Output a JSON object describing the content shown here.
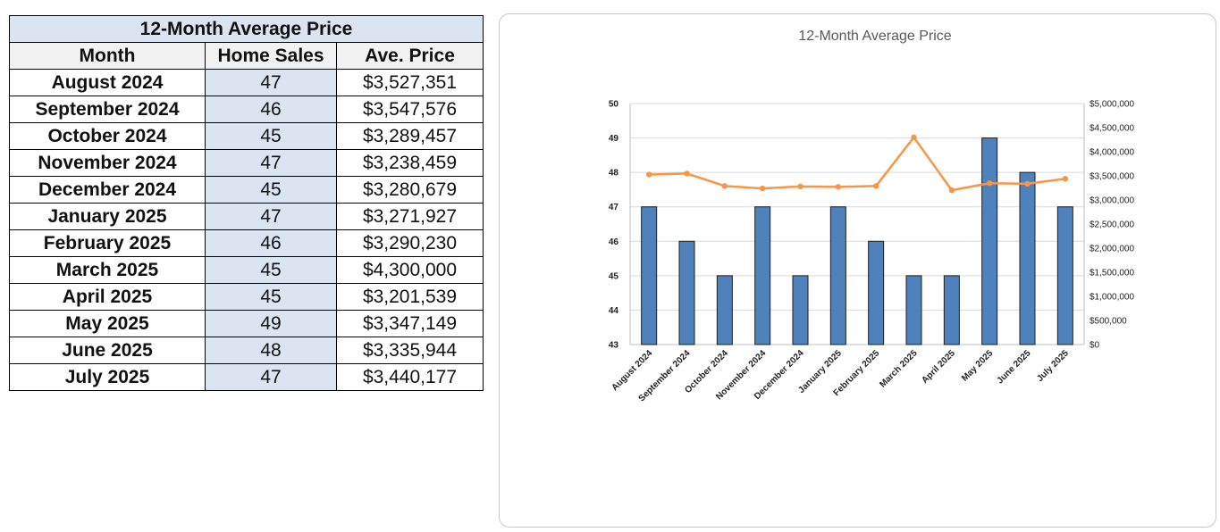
{
  "table": {
    "title": "12-Month Average Price",
    "headers": {
      "month": "Month",
      "sales": "Home Sales",
      "price": "Ave. Price"
    },
    "rows": [
      {
        "month": "August 2024",
        "sales": "47",
        "price": "$3,527,351"
      },
      {
        "month": "September 2024",
        "sales": "46",
        "price": "$3,547,576"
      },
      {
        "month": "October 2024",
        "sales": "45",
        "price": "$3,289,457"
      },
      {
        "month": "November 2024",
        "sales": "47",
        "price": "$3,238,459"
      },
      {
        "month": "December 2024",
        "sales": "45",
        "price": "$3,280,679"
      },
      {
        "month": "January 2025",
        "sales": "47",
        "price": "$3,271,927"
      },
      {
        "month": "February 2025",
        "sales": "46",
        "price": "$3,290,230"
      },
      {
        "month": "March 2025",
        "sales": "45",
        "price": "$4,300,000"
      },
      {
        "month": "April 2025",
        "sales": "45",
        "price": "$3,201,539"
      },
      {
        "month": "May 2025",
        "sales": "49",
        "price": "$3,347,149"
      },
      {
        "month": "June 2025",
        "sales": "48",
        "price": "$3,335,944"
      },
      {
        "month": "July 2025",
        "sales": "47",
        "price": "$3,440,177"
      }
    ]
  },
  "chart_data": {
    "type": "bar",
    "title": "12-Month Average Price",
    "categories": [
      "August 2024",
      "September 2024",
      "October 2024",
      "November 2024",
      "December 2024",
      "January 2025",
      "February 2025",
      "March 2025",
      "April 2025",
      "May 2025",
      "June 2025",
      "July 2025"
    ],
    "series": [
      {
        "type": "bar",
        "axis": "left",
        "color": "#4f81bd",
        "values": [
          47,
          46,
          45,
          47,
          45,
          47,
          46,
          45,
          45,
          49,
          48,
          47
        ]
      },
      {
        "type": "line",
        "axis": "right",
        "color": "#f79646",
        "values": [
          3527351,
          3547576,
          3289457,
          3238459,
          3280679,
          3271927,
          3290230,
          4300000,
          3201539,
          3347149,
          3335944,
          3440177
        ]
      }
    ],
    "y_left": {
      "ylim": [
        43,
        50
      ],
      "ticks": [
        "43",
        "44",
        "45",
        "46",
        "47",
        "48",
        "49",
        "50"
      ]
    },
    "y_right": {
      "ylim": [
        0,
        5000000
      ],
      "ticks": [
        "$0",
        "$500,000",
        "$1,000,000",
        "$1,500,000",
        "$2,000,000",
        "$2,500,000",
        "$3,000,000",
        "$3,500,000",
        "$4,000,000",
        "$4,500,000",
        "$5,000,000"
      ]
    },
    "grid": true,
    "legend": "none"
  }
}
